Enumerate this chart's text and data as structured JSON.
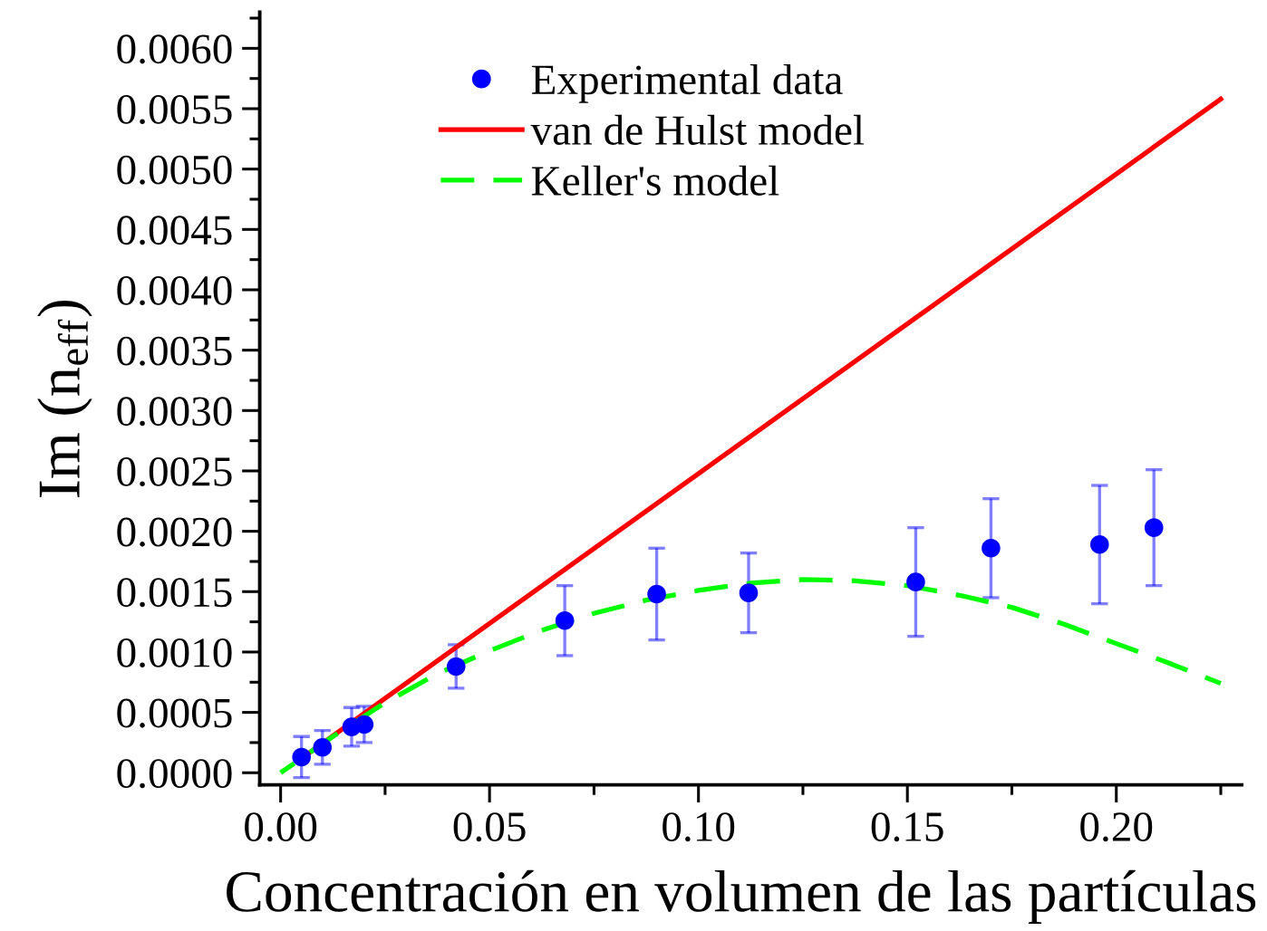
{
  "chart_data": {
    "type": "scatter",
    "xlabel": "Concentración en volumen de las partículas",
    "ylabel": "Im (n$_{eff}$)",
    "xlim": [
      -0.005,
      0.23
    ],
    "ylim": [
      -0.0001,
      0.0063
    ],
    "xticks": [
      {
        "value": 0,
        "label": "0.00"
      },
      {
        "value": 0.05,
        "label": "0.05"
      },
      {
        "value": 0.1,
        "label": "0.10"
      },
      {
        "value": 0.15,
        "label": "0.15"
      },
      {
        "value": 0.2,
        "label": "0.20"
      }
    ],
    "yticks": [
      {
        "value": 0,
        "label": "0.0000"
      },
      {
        "value": 0.0005,
        "label": "0.0005"
      },
      {
        "value": 0.001,
        "label": "0.0010"
      },
      {
        "value": 0.0015,
        "label": "0.0015"
      },
      {
        "value": 0.002,
        "label": "0.0020"
      },
      {
        "value": 0.0025,
        "label": "0.0025"
      },
      {
        "value": 0.003,
        "label": "0.0030"
      },
      {
        "value": 0.0035,
        "label": "0.0035"
      },
      {
        "value": 0.004,
        "label": "0.0040"
      },
      {
        "value": 0.0045,
        "label": "0.0045"
      },
      {
        "value": 0.005,
        "label": "0.0050"
      },
      {
        "value": 0.0055,
        "label": "0.0055"
      },
      {
        "value": 0.006,
        "label": "0.0060"
      }
    ],
    "legend": "top left",
    "series": [
      {
        "name": "Experimental data",
        "marker": "circle",
        "color": "#0000ff",
        "x": [
          0.005,
          0.01,
          0.017,
          0.02,
          0.042,
          0.068,
          0.09,
          0.112,
          0.152,
          0.17,
          0.196,
          0.209
        ],
        "values": [
          0.00013,
          0.00021,
          0.00038,
          0.0004,
          0.00088,
          0.00126,
          0.00148,
          0.00149,
          0.00158,
          0.00186,
          0.00189,
          0.00203
        ],
        "errors": [
          0.00017,
          0.00014,
          0.00016,
          0.00015,
          0.00018,
          0.00029,
          0.00038,
          0.00033,
          0.00045,
          0.00041,
          0.00049,
          0.00048
        ]
      },
      {
        "name": "van de Hulst model",
        "type": "line",
        "line_style": "solid",
        "color": "#ff0000",
        "x": [
          0.005,
          0.225
        ],
        "values": [
          0.00012,
          0.00558
        ]
      },
      {
        "name": "Keller's model",
        "type": "line",
        "line_style": "dashed",
        "color": "#00ff00",
        "x": [
          0,
          0.0125,
          0.025,
          0.0375,
          0.05,
          0.0625,
          0.075,
          0.0875,
          0.1,
          0.1125,
          0.125,
          0.1375,
          0.15,
          0.1625,
          0.175,
          0.1875,
          0.2,
          0.2125,
          0.225
        ],
        "values": [
          0,
          0.0003,
          0.00058,
          0.00082,
          0.00101,
          0.00118,
          0.00132,
          0.00143,
          0.00151,
          0.00157,
          0.0016,
          0.00159,
          0.00155,
          0.00147,
          0.00137,
          0.00123,
          0.00107,
          0.00091,
          0.00074
        ]
      }
    ]
  }
}
